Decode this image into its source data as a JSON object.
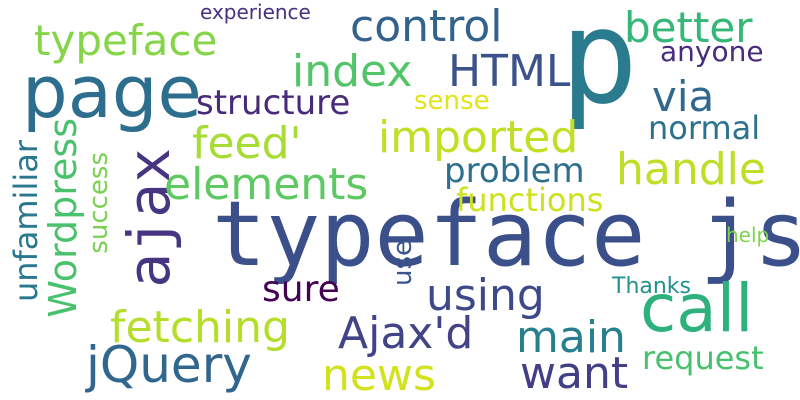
{
  "words": [
    {
      "text": "typeface js",
      "color": "#3b4f8a"
    },
    {
      "text": "p",
      "color": "#2a7b8e"
    },
    {
      "text": "page",
      "color": "#2d6e8e"
    },
    {
      "text": "ajax",
      "color": "#463580"
    },
    {
      "text": "call",
      "color": "#2db27d"
    },
    {
      "text": "typeface",
      "color": "#86d549"
    },
    {
      "text": "control",
      "color": "#33638d"
    },
    {
      "text": "better",
      "color": "#35b779"
    },
    {
      "text": "index",
      "color": "#52c569"
    },
    {
      "text": "HTML",
      "color": "#3b528b"
    },
    {
      "text": "anyone",
      "color": "#472d7b"
    },
    {
      "text": "via",
      "color": "#31688e"
    },
    {
      "text": "structure",
      "color": "#472a7a"
    },
    {
      "text": "sense",
      "color": "#e2e418"
    },
    {
      "text": "imported",
      "color": "#c0df25"
    },
    {
      "text": "normal",
      "color": "#2c728e"
    },
    {
      "text": "feed'",
      "color": "#a8db34"
    },
    {
      "text": "handle",
      "color": "#bddf26"
    },
    {
      "text": "problem",
      "color": "#2e6f8e"
    },
    {
      "text": "elements",
      "color": "#5ec962"
    },
    {
      "text": "functions",
      "color": "#cde11d"
    },
    {
      "text": "Wordpress",
      "color": "#4ac16d"
    },
    {
      "text": "unfamiliar",
      "color": "#2a788e"
    },
    {
      "text": "success",
      "color": "#7ad151"
    },
    {
      "text": "help",
      "color": "#7fd34e"
    },
    {
      "text": "use",
      "color": "#39558c"
    },
    {
      "text": "sure",
      "color": "#440154"
    },
    {
      "text": "using",
      "color": "#3e4989"
    },
    {
      "text": "Thanks",
      "color": "#21918c"
    },
    {
      "text": "fetching",
      "color": "#b5de2b"
    },
    {
      "text": "Ajax'd",
      "color": "#414487"
    },
    {
      "text": "main",
      "color": "#277f8e"
    },
    {
      "text": "request",
      "color": "#48c16e"
    },
    {
      "text": "jQuery",
      "color": "#31668e"
    },
    {
      "text": "news",
      "color": "#d2e21b"
    },
    {
      "text": "want",
      "color": "#423f85"
    },
    {
      "text": "experience",
      "color": "#46327e"
    }
  ]
}
